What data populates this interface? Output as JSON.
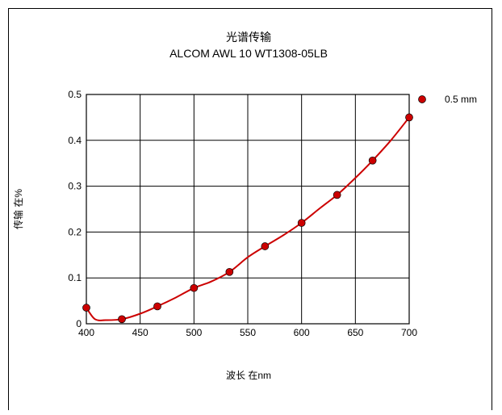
{
  "chart_data": {
    "type": "line",
    "title": "光谱传输",
    "subtitle": "ALCOM AWL 10  WT1308-05LB",
    "xlabel": "波长 在nm",
    "ylabel": "传输 在%",
    "xlim": [
      400,
      700
    ],
    "ylim": [
      0,
      0.5
    ],
    "x_ticks": [
      "400",
      "450",
      "500",
      "550",
      "600",
      "650",
      "700"
    ],
    "y_ticks": [
      "0",
      "0.1",
      "0.2",
      "0.3",
      "0.4",
      "0.5"
    ],
    "grid": true,
    "legend_position": "top-right",
    "series": [
      {
        "name": "0.5 mm",
        "color": "#cc0000",
        "marker_color": "#cc0000",
        "points": [
          {
            "x": 400,
            "y": 0.035
          },
          {
            "x": 433,
            "y": 0.01
          },
          {
            "x": 466,
            "y": 0.038
          },
          {
            "x": 500,
            "y": 0.078
          },
          {
            "x": 533,
            "y": 0.113
          },
          {
            "x": 566,
            "y": 0.169
          },
          {
            "x": 600,
            "y": 0.22
          },
          {
            "x": 633,
            "y": 0.281
          },
          {
            "x": 666,
            "y": 0.356
          },
          {
            "x": 700,
            "y": 0.45
          }
        ],
        "curve": [
          {
            "x": 400,
            "y": 0.035
          },
          {
            "x": 408,
            "y": 0.01
          },
          {
            "x": 418,
            "y": 0.008
          },
          {
            "x": 433,
            "y": 0.01
          },
          {
            "x": 450,
            "y": 0.022
          },
          {
            "x": 466,
            "y": 0.038
          },
          {
            "x": 483,
            "y": 0.057
          },
          {
            "x": 500,
            "y": 0.078
          },
          {
            "x": 516,
            "y": 0.092
          },
          {
            "x": 533,
            "y": 0.113
          },
          {
            "x": 550,
            "y": 0.145
          },
          {
            "x": 566,
            "y": 0.169
          },
          {
            "x": 583,
            "y": 0.193
          },
          {
            "x": 600,
            "y": 0.22
          },
          {
            "x": 616,
            "y": 0.25
          },
          {
            "x": 633,
            "y": 0.281
          },
          {
            "x": 650,
            "y": 0.318
          },
          {
            "x": 666,
            "y": 0.356
          },
          {
            "x": 683,
            "y": 0.4
          },
          {
            "x": 700,
            "y": 0.45
          }
        ]
      }
    ]
  }
}
